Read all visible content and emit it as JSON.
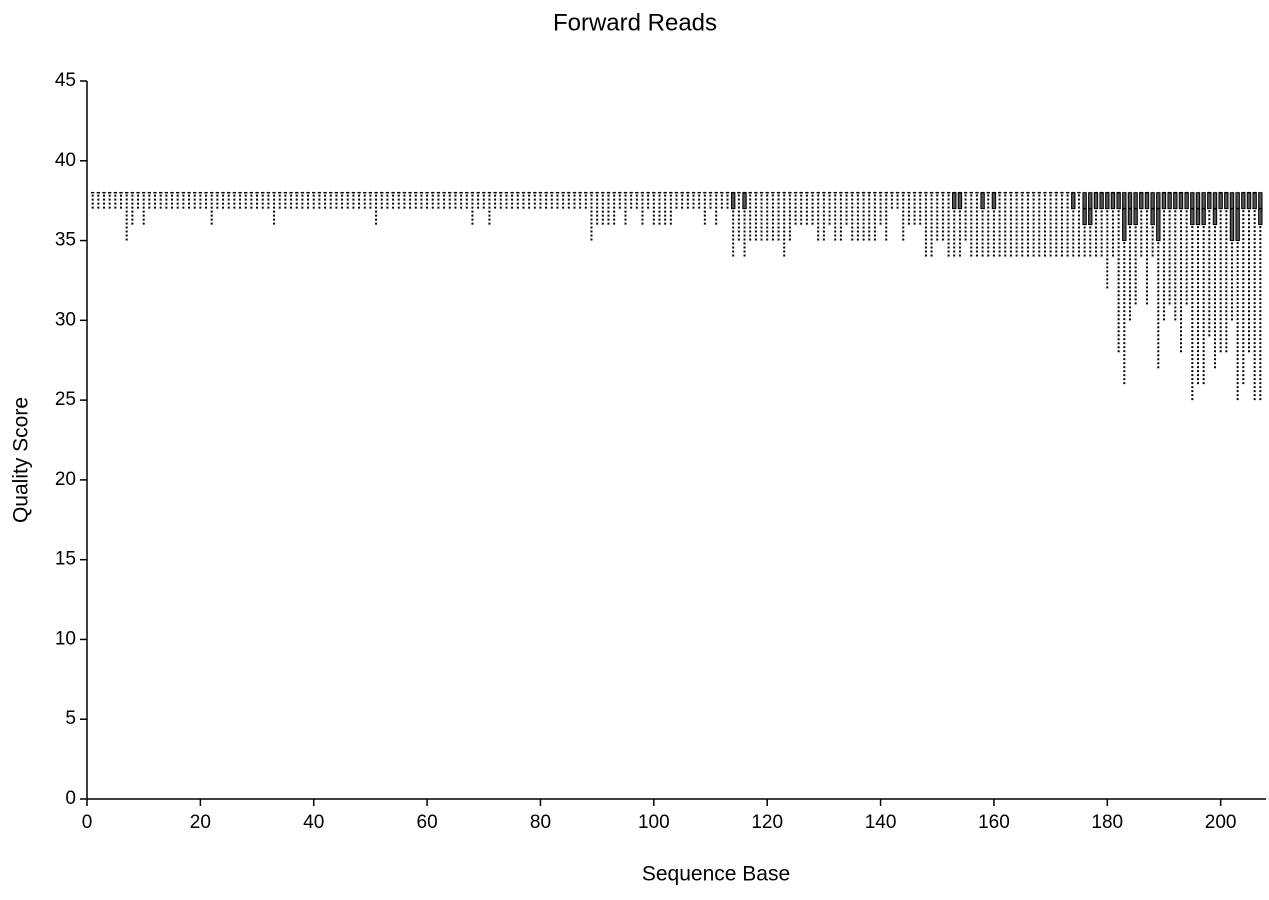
{
  "chart_data": {
    "type": "box",
    "title": "Forward Reads",
    "x_label": "Sequence Base",
    "y_label": "Quality Score",
    "x": [
      1,
      2,
      3,
      4,
      5,
      6,
      7,
      8,
      9,
      10,
      11,
      12,
      13,
      14,
      15,
      16,
      17,
      18,
      19,
      20,
      21,
      22,
      23,
      24,
      25,
      26,
      27,
      28,
      29,
      30,
      31,
      32,
      33,
      34,
      35,
      36,
      37,
      38,
      39,
      40,
      41,
      42,
      43,
      44,
      45,
      46,
      47,
      48,
      49,
      50,
      51,
      52,
      53,
      54,
      55,
      56,
      57,
      58,
      59,
      60,
      61,
      62,
      63,
      64,
      65,
      66,
      67,
      68,
      69,
      70,
      71,
      72,
      73,
      74,
      75,
      76,
      77,
      78,
      79,
      80,
      81,
      82,
      83,
      84,
      85,
      86,
      87,
      88,
      89,
      90,
      91,
      92,
      93,
      94,
      95,
      96,
      97,
      98,
      99,
      100,
      101,
      102,
      103,
      104,
      105,
      106,
      107,
      108,
      109,
      110,
      111,
      112,
      113,
      114,
      115,
      116,
      117,
      118,
      119,
      120,
      121,
      122,
      123,
      124,
      125,
      126,
      127,
      128,
      129,
      130,
      131,
      132,
      133,
      134,
      135,
      136,
      137,
      138,
      139,
      140,
      141,
      142,
      143,
      144,
      145,
      146,
      147,
      148,
      149,
      150,
      151,
      152,
      153,
      154,
      155,
      156,
      157,
      158,
      159,
      160,
      161,
      162,
      163,
      164,
      165,
      166,
      167,
      168,
      169,
      170,
      171,
      172,
      173,
      174,
      175,
      176,
      177,
      178,
      179,
      180,
      181,
      182,
      183,
      184,
      185,
      186,
      187,
      188,
      189,
      190,
      191,
      192,
      193,
      194,
      195,
      196,
      197,
      198,
      199,
      200,
      201,
      202,
      203,
      204,
      205,
      206,
      207
    ],
    "min": [
      37,
      37,
      37,
      37,
      37,
      37,
      35,
      36,
      37,
      36,
      37,
      37,
      37,
      37,
      37,
      37,
      37,
      37,
      37,
      37,
      37,
      36,
      37,
      37,
      37,
      37,
      37,
      37,
      37,
      37,
      37,
      37,
      36,
      37,
      37,
      37,
      37,
      37,
      37,
      37,
      37,
      37,
      37,
      37,
      37,
      37,
      37,
      37,
      37,
      37,
      36,
      37,
      37,
      37,
      37,
      37,
      37,
      37,
      37,
      37,
      37,
      37,
      37,
      37,
      37,
      37,
      37,
      36,
      37,
      37,
      36,
      37,
      37,
      37,
      37,
      37,
      37,
      37,
      37,
      37,
      37,
      37,
      37,
      37,
      37,
      37,
      37,
      37,
      35,
      36,
      36,
      36,
      36,
      37,
      36,
      37,
      37,
      36,
      37,
      36,
      36,
      36,
      36,
      37,
      37,
      37,
      37,
      37,
      36,
      37,
      36,
      37,
      37,
      34,
      35,
      34,
      35,
      35,
      35,
      35,
      35,
      35,
      34,
      35,
      36,
      36,
      36,
      36,
      35,
      35,
      36,
      35,
      35,
      36,
      35,
      35,
      35,
      35,
      35,
      36,
      35,
      37,
      37,
      35,
      36,
      36,
      36,
      34,
      34,
      35,
      35,
      34,
      34,
      34,
      35,
      34,
      34,
      34,
      34,
      34,
      34,
      34,
      34,
      34,
      34,
      34,
      34,
      34,
      34,
      34,
      34,
      34,
      34,
      34,
      34,
      34,
      34,
      34,
      34,
      32,
      34,
      28,
      26,
      30,
      31,
      34,
      31,
      34,
      27,
      30,
      31,
      30,
      28,
      31,
      25,
      26,
      26,
      29,
      27,
      28,
      28,
      30,
      25,
      26,
      28,
      25,
      25
    ],
    "q1": [
      38,
      38,
      38,
      38,
      38,
      38,
      38,
      38,
      38,
      38,
      38,
      38,
      38,
      38,
      38,
      38,
      38,
      38,
      38,
      38,
      38,
      38,
      38,
      38,
      38,
      38,
      38,
      38,
      38,
      38,
      38,
      38,
      38,
      38,
      38,
      38,
      38,
      38,
      38,
      38,
      38,
      38,
      38,
      38,
      38,
      38,
      38,
      38,
      38,
      38,
      38,
      38,
      38,
      38,
      38,
      38,
      38,
      38,
      38,
      38,
      38,
      38,
      38,
      38,
      38,
      38,
      38,
      38,
      38,
      38,
      38,
      38,
      38,
      38,
      38,
      38,
      38,
      38,
      38,
      38,
      38,
      38,
      38,
      38,
      38,
      38,
      38,
      38,
      38,
      38,
      38,
      38,
      38,
      38,
      38,
      38,
      38,
      38,
      38,
      38,
      38,
      38,
      38,
      38,
      38,
      38,
      38,
      38,
      38,
      38,
      38,
      38,
      38,
      37,
      38,
      37,
      38,
      38,
      38,
      38,
      38,
      38,
      38,
      38,
      38,
      38,
      38,
      38,
      38,
      38,
      38,
      38,
      38,
      38,
      38,
      38,
      38,
      38,
      38,
      38,
      38,
      38,
      38,
      38,
      38,
      38,
      38,
      38,
      38,
      38,
      38,
      38,
      37,
      37,
      38,
      38,
      38,
      37,
      38,
      37,
      38,
      38,
      38,
      38,
      38,
      38,
      38,
      38,
      38,
      38,
      38,
      38,
      38,
      37,
      38,
      36,
      36,
      37,
      37,
      37,
      37,
      37,
      35,
      36,
      36,
      37,
      37,
      36,
      35,
      37,
      37,
      37,
      37,
      37,
      36,
      36,
      36,
      37,
      36,
      37,
      37,
      35,
      35,
      37,
      37,
      37,
      36
    ],
    "median": [
      38,
      38,
      38,
      38,
      38,
      38,
      38,
      38,
      38,
      38,
      38,
      38,
      38,
      38,
      38,
      38,
      38,
      38,
      38,
      38,
      38,
      38,
      38,
      38,
      38,
      38,
      38,
      38,
      38,
      38,
      38,
      38,
      38,
      38,
      38,
      38,
      38,
      38,
      38,
      38,
      38,
      38,
      38,
      38,
      38,
      38,
      38,
      38,
      38,
      38,
      38,
      38,
      38,
      38,
      38,
      38,
      38,
      38,
      38,
      38,
      38,
      38,
      38,
      38,
      38,
      38,
      38,
      38,
      38,
      38,
      38,
      38,
      38,
      38,
      38,
      38,
      38,
      38,
      38,
      38,
      38,
      38,
      38,
      38,
      38,
      38,
      38,
      38,
      38,
      38,
      38,
      38,
      38,
      38,
      38,
      38,
      38,
      38,
      38,
      38,
      38,
      38,
      38,
      38,
      38,
      38,
      38,
      38,
      38,
      38,
      38,
      38,
      38,
      38,
      38,
      38,
      38,
      38,
      38,
      38,
      38,
      38,
      38,
      38,
      38,
      38,
      38,
      38,
      38,
      38,
      38,
      38,
      38,
      38,
      38,
      38,
      38,
      38,
      38,
      38,
      38,
      38,
      38,
      38,
      38,
      38,
      38,
      38,
      38,
      38,
      38,
      38,
      38,
      38,
      38,
      38,
      38,
      38,
      38,
      38,
      38,
      38,
      38,
      38,
      38,
      38,
      38,
      38,
      38,
      38,
      38,
      38,
      38,
      38,
      38,
      37,
      37,
      38,
      38,
      38,
      38,
      38,
      37,
      37,
      37,
      38,
      38,
      37,
      37,
      38,
      38,
      38,
      38,
      38,
      37,
      37,
      37,
      38,
      37,
      38,
      38,
      37,
      37,
      38,
      38,
      38,
      37
    ],
    "q3": [
      38,
      38,
      38,
      38,
      38,
      38,
      38,
      38,
      38,
      38,
      38,
      38,
      38,
      38,
      38,
      38,
      38,
      38,
      38,
      38,
      38,
      38,
      38,
      38,
      38,
      38,
      38,
      38,
      38,
      38,
      38,
      38,
      38,
      38,
      38,
      38,
      38,
      38,
      38,
      38,
      38,
      38,
      38,
      38,
      38,
      38,
      38,
      38,
      38,
      38,
      38,
      38,
      38,
      38,
      38,
      38,
      38,
      38,
      38,
      38,
      38,
      38,
      38,
      38,
      38,
      38,
      38,
      38,
      38,
      38,
      38,
      38,
      38,
      38,
      38,
      38,
      38,
      38,
      38,
      38,
      38,
      38,
      38,
      38,
      38,
      38,
      38,
      38,
      38,
      38,
      38,
      38,
      38,
      38,
      38,
      38,
      38,
      38,
      38,
      38,
      38,
      38,
      38,
      38,
      38,
      38,
      38,
      38,
      38,
      38,
      38,
      38,
      38,
      38,
      38,
      38,
      38,
      38,
      38,
      38,
      38,
      38,
      38,
      38,
      38,
      38,
      38,
      38,
      38,
      38,
      38,
      38,
      38,
      38,
      38,
      38,
      38,
      38,
      38,
      38,
      38,
      38,
      38,
      38,
      38,
      38,
      38,
      38,
      38,
      38,
      38,
      38,
      38,
      38,
      38,
      38,
      38,
      38,
      38,
      38,
      38,
      38,
      38,
      38,
      38,
      38,
      38,
      38,
      38,
      38,
      38,
      38,
      38,
      38,
      38,
      38,
      38,
      38,
      38,
      38,
      38,
      38,
      38,
      38,
      38,
      38,
      38,
      38,
      38,
      38,
      38,
      38,
      38,
      38,
      38,
      38,
      38,
      38,
      38,
      38,
      38,
      38,
      38,
      38,
      38,
      38,
      38
    ],
    "max": [
      38,
      38,
      38,
      38,
      38,
      38,
      38,
      38,
      38,
      38,
      38,
      38,
      38,
      38,
      38,
      38,
      38,
      38,
      38,
      38,
      38,
      38,
      38,
      38,
      38,
      38,
      38,
      38,
      38,
      38,
      38,
      38,
      38,
      38,
      38,
      38,
      38,
      38,
      38,
      38,
      38,
      38,
      38,
      38,
      38,
      38,
      38,
      38,
      38,
      38,
      38,
      38,
      38,
      38,
      38,
      38,
      38,
      38,
      38,
      38,
      38,
      38,
      38,
      38,
      38,
      38,
      38,
      38,
      38,
      38,
      38,
      38,
      38,
      38,
      38,
      38,
      38,
      38,
      38,
      38,
      38,
      38,
      38,
      38,
      38,
      38,
      38,
      38,
      38,
      38,
      38,
      38,
      38,
      38,
      38,
      38,
      38,
      38,
      38,
      38,
      38,
      38,
      38,
      38,
      38,
      38,
      38,
      38,
      38,
      38,
      38,
      38,
      38,
      38,
      38,
      38,
      38,
      38,
      38,
      38,
      38,
      38,
      38,
      38,
      38,
      38,
      38,
      38,
      38,
      38,
      38,
      38,
      38,
      38,
      38,
      38,
      38,
      38,
      38,
      38,
      38,
      38,
      38,
      38,
      38,
      38,
      38,
      38,
      38,
      38,
      38,
      38,
      38,
      38,
      38,
      38,
      38,
      38,
      38,
      38,
      38,
      38,
      38,
      38,
      38,
      38,
      38,
      38,
      38,
      38,
      38,
      38,
      38,
      38,
      38,
      38,
      38,
      38,
      38,
      38,
      38,
      38,
      38,
      38,
      38,
      38,
      38,
      38,
      38,
      38,
      38,
      38,
      38,
      38,
      38,
      38,
      38,
      38,
      38,
      38,
      38,
      38,
      38,
      38,
      38,
      38,
      38
    ],
    "xlim": [
      0,
      208
    ],
    "ylim": [
      0,
      45
    ],
    "xticks": [
      0,
      20,
      40,
      60,
      80,
      100,
      120,
      140,
      160,
      180,
      200
    ],
    "yticks": [
      0,
      5,
      10,
      15,
      20,
      25,
      30,
      35,
      40,
      45
    ],
    "color": "#000000",
    "box_fill": "#555555"
  }
}
